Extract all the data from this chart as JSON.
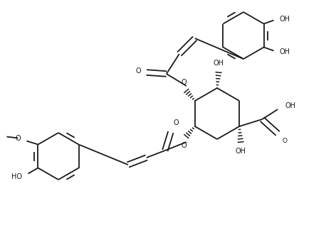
{
  "bg_color": "#ffffff",
  "line_color": "#1a1a1a",
  "lw": 1.3,
  "fs": 7.0,
  "figsize": [
    4.72,
    3.38
  ],
  "dpi": 100,
  "xlim": [
    0,
    4.72
  ],
  "ylim": [
    0,
    3.38
  ]
}
